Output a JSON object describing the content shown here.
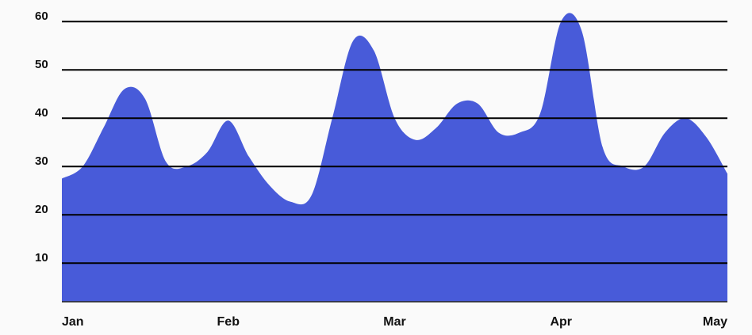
{
  "chart_data": {
    "type": "area",
    "categories": [
      "Jan",
      null,
      null,
      null,
      null,
      null,
      null,
      null,
      "Feb",
      null,
      null,
      null,
      null,
      null,
      null,
      null,
      "Mar",
      null,
      null,
      null,
      null,
      null,
      null,
      null,
      "Apr",
      null,
      null,
      null,
      null,
      null,
      null,
      null,
      "May"
    ],
    "values": [
      27.5,
      30,
      38,
      46,
      44,
      31,
      30,
      33,
      39.5,
      32,
      26,
      22.7,
      24,
      40,
      56,
      54,
      40,
      35.5,
      38,
      43,
      43,
      37,
      37,
      41,
      60,
      58,
      34,
      30,
      30,
      37,
      40,
      36,
      28.5
    ],
    "color": "#485bd9",
    "ylim": [
      2,
      62
    ],
    "yticks": [
      10,
      20,
      30,
      40,
      50,
      60
    ],
    "grid": true
  }
}
